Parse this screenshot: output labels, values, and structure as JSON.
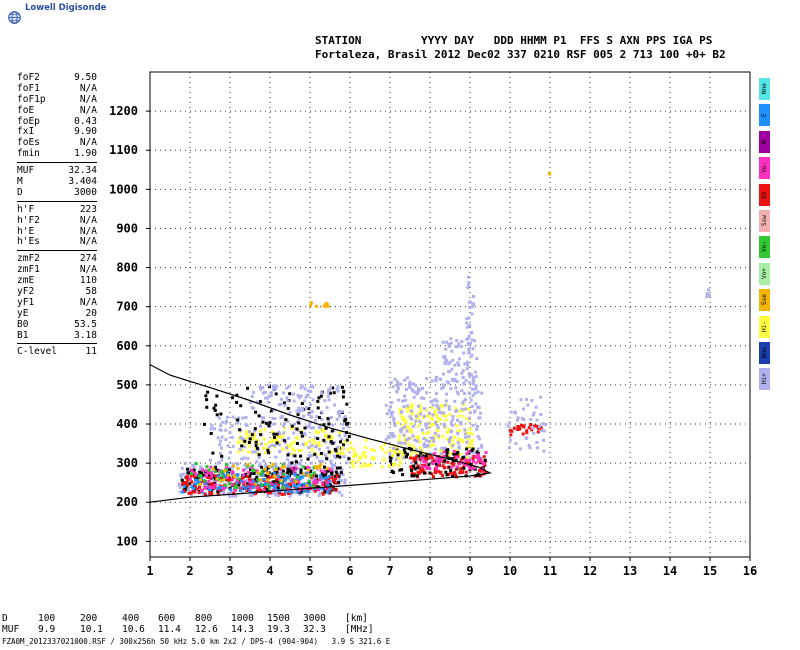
{
  "logo": {
    "text": "Lowell Digisonde"
  },
  "header": {
    "line1": "STATION         YYYY DAY   DDD HHMM P1  FFS S AXN PPS IGA PS",
    "line2": "Fortaleza, Brasil 2012 Dec02 337 0210 RSF 005 2 713 100 +0+ B2"
  },
  "params": [
    [
      [
        "foF2",
        "9.50"
      ],
      [
        "foF1",
        "N/A"
      ],
      [
        "foF1p",
        "N/A"
      ],
      [
        "foE",
        "N/A"
      ],
      [
        "foEp",
        "0.43"
      ],
      [
        "fxI",
        "9.90"
      ],
      [
        "foEs",
        "N/A"
      ],
      [
        "fmin",
        "1.90"
      ]
    ],
    [
      [
        "MUF",
        "32.34"
      ],
      [
        "M",
        "3.404"
      ],
      [
        "D",
        "3000"
      ]
    ],
    [
      [
        "h'F",
        "223"
      ],
      [
        "h'F2",
        "N/A"
      ],
      [
        "h'E",
        "N/A"
      ],
      [
        "h'Es",
        "N/A"
      ]
    ],
    [
      [
        "zmF2",
        "274"
      ],
      [
        "zmF1",
        "N/A"
      ],
      [
        "zmE",
        "110"
      ],
      [
        "yF2",
        "58"
      ],
      [
        "yF1",
        "N/A"
      ],
      [
        "yE",
        "20"
      ],
      [
        "B0",
        "53.5"
      ],
      [
        "B1",
        "3.18"
      ]
    ],
    [
      [
        "C-level",
        "11"
      ]
    ]
  ],
  "legend_tags": [
    {
      "label": "Nne",
      "color": "#54e6e6"
    },
    {
      "label": "E",
      "color": "#1e90ff"
    },
    {
      "label": "W",
      "color": "#a000a0"
    },
    {
      "label": "Vo-",
      "color": "#ff30c0"
    },
    {
      "label": "XO",
      "color": "#ee1111"
    },
    {
      "label": "Ssw",
      "color": "#f4b0b0"
    },
    {
      "label": "Vo-",
      "color": "#32c832"
    },
    {
      "label": "Vo+",
      "color": "#a8f0a8"
    },
    {
      "label": "Sse",
      "color": "#f4b400"
    },
    {
      "label": "Hi-",
      "color": "#ffff40"
    },
    {
      "label": "Nnw",
      "color": "#1c3fb0"
    },
    {
      "label": "Hi+",
      "color": "#b0b0ee"
    }
  ],
  "muf_table": {
    "d_label": "D",
    "d_values": [
      "100",
      "200",
      "400",
      "600",
      "800",
      "1000",
      "1500",
      "3000"
    ],
    "d_unit": "[km]",
    "muf_label": "MUF",
    "muf_values": [
      "9.9",
      "10.1",
      "10.6",
      "11.4",
      "12.6",
      "14.3",
      "19.3",
      "32.3"
    ],
    "muf_unit": "[MHz]"
  },
  "footer": "FZA0M_2012337021000.RSF / 300x256h 50 kHz 5.0 km 2x2 / DPS-4 (904-904)   3.9 S 321.6 E",
  "chart_data": {
    "type": "scatter",
    "title": "",
    "xlabel": "",
    "ylabel": "",
    "xlim": [
      1,
      16
    ],
    "ylim": [
      60,
      1300
    ],
    "x_ticks": [
      1,
      2,
      3,
      4,
      5,
      6,
      7,
      8,
      9,
      10,
      11,
      12,
      13,
      14,
      15,
      16
    ],
    "y_ticks": [
      100,
      200,
      300,
      400,
      500,
      600,
      700,
      800,
      900,
      1000,
      1100,
      1200
    ],
    "grid": true,
    "profile_curve": {
      "name": "",
      "points": [
        [
          1,
          200
        ],
        [
          2,
          213
        ],
        [
          3,
          220
        ],
        [
          4,
          228
        ],
        [
          5,
          236
        ],
        [
          6,
          243
        ],
        [
          7,
          251
        ],
        [
          8,
          259
        ],
        [
          9,
          267
        ],
        [
          9.5,
          275
        ],
        [
          9.2,
          290
        ],
        [
          8.5,
          310
        ],
        [
          7.5,
          335
        ],
        [
          6.5,
          362
        ],
        [
          5.5,
          390
        ],
        [
          4.5,
          423
        ],
        [
          3.5,
          460
        ],
        [
          2.5,
          493
        ],
        [
          1.5,
          525
        ],
        [
          1,
          552
        ]
      ]
    },
    "echo_clusters": [
      {
        "color": "#b0b0ee",
        "x": [
          1.7,
          5.9
        ],
        "y": [
          215,
          300
        ],
        "n": 260
      },
      {
        "color": "#000000",
        "x": [
          1.8,
          5.8
        ],
        "y": [
          225,
          290
        ],
        "n": 220
      },
      {
        "color": "#ee1111",
        "x": [
          1.8,
          5.8
        ],
        "y": [
          220,
          270
        ],
        "n": 160
      },
      {
        "color": "#1e90ff",
        "x": [
          1.8,
          5.5
        ],
        "y": [
          225,
          275
        ],
        "n": 110
      },
      {
        "color": "#ff30c0",
        "x": [
          1.9,
          5.6
        ],
        "y": [
          230,
          290
        ],
        "n": 90
      },
      {
        "color": "#32c832",
        "x": [
          2.0,
          5.2
        ],
        "y": [
          235,
          300
        ],
        "n": 50
      },
      {
        "color": "#f4b400",
        "x": [
          2.2,
          5.5
        ],
        "y": [
          240,
          300
        ],
        "n": 40
      },
      {
        "color": "#ffff40",
        "x": [
          3.2,
          5.8
        ],
        "y": [
          320,
          390
        ],
        "n": 120
      },
      {
        "color": "#b0b0ee",
        "x": [
          2.5,
          6.0
        ],
        "y": [
          300,
          420
        ],
        "n": 160
      },
      {
        "color": "#000000",
        "x": [
          2.3,
          6.0
        ],
        "y": [
          300,
          500
        ],
        "n": 120
      },
      {
        "color": "#b0b0ee",
        "x": [
          3.5,
          5.8
        ],
        "y": [
          420,
          500
        ],
        "n": 80
      },
      {
        "color": "#ffff40",
        "x": [
          7.2,
          9.1
        ],
        "y": [
          310,
          450
        ],
        "n": 180
      },
      {
        "color": "#b0b0ee",
        "x": [
          6.9,
          9.3
        ],
        "y": [
          300,
          520
        ],
        "n": 260
      },
      {
        "color": "#ee1111",
        "x": [
          7.5,
          9.4
        ],
        "y": [
          265,
          320
        ],
        "n": 120
      },
      {
        "color": "#000000",
        "x": [
          7.0,
          9.4
        ],
        "y": [
          265,
          340
        ],
        "n": 80
      },
      {
        "color": "#ff30c0",
        "x": [
          7.8,
          9.4
        ],
        "y": [
          280,
          330
        ],
        "n": 50
      },
      {
        "color": "#ffff40",
        "x": [
          5.8,
          7.3
        ],
        "y": [
          290,
          360
        ],
        "n": 60
      },
      {
        "color": "#b0b0ee",
        "x": [
          8.3,
          9.2
        ],
        "y": [
          500,
          620
        ],
        "n": 60
      },
      {
        "color": "#b0b0ee",
        "x": [
          8.9,
          9.1
        ],
        "y": [
          600,
          780
        ],
        "n": 25
      },
      {
        "color": "#ee1111",
        "x": [
          10.0,
          10.8
        ],
        "y": [
          370,
          400
        ],
        "n": 25
      },
      {
        "color": "#b0b0ee",
        "x": [
          9.9,
          10.9
        ],
        "y": [
          330,
          470
        ],
        "n": 40
      },
      {
        "color": "#f4b400",
        "x": [
          5.0,
          5.5
        ],
        "y": [
          700,
          712
        ],
        "n": 8
      },
      {
        "color": "#b0b0ee",
        "x": [
          14.9,
          15.0
        ],
        "y": [
          725,
          745
        ],
        "n": 4
      },
      {
        "color": "#f4b400",
        "x": [
          10.9,
          11.0
        ],
        "y": [
          1035,
          1045
        ],
        "n": 2
      }
    ]
  }
}
